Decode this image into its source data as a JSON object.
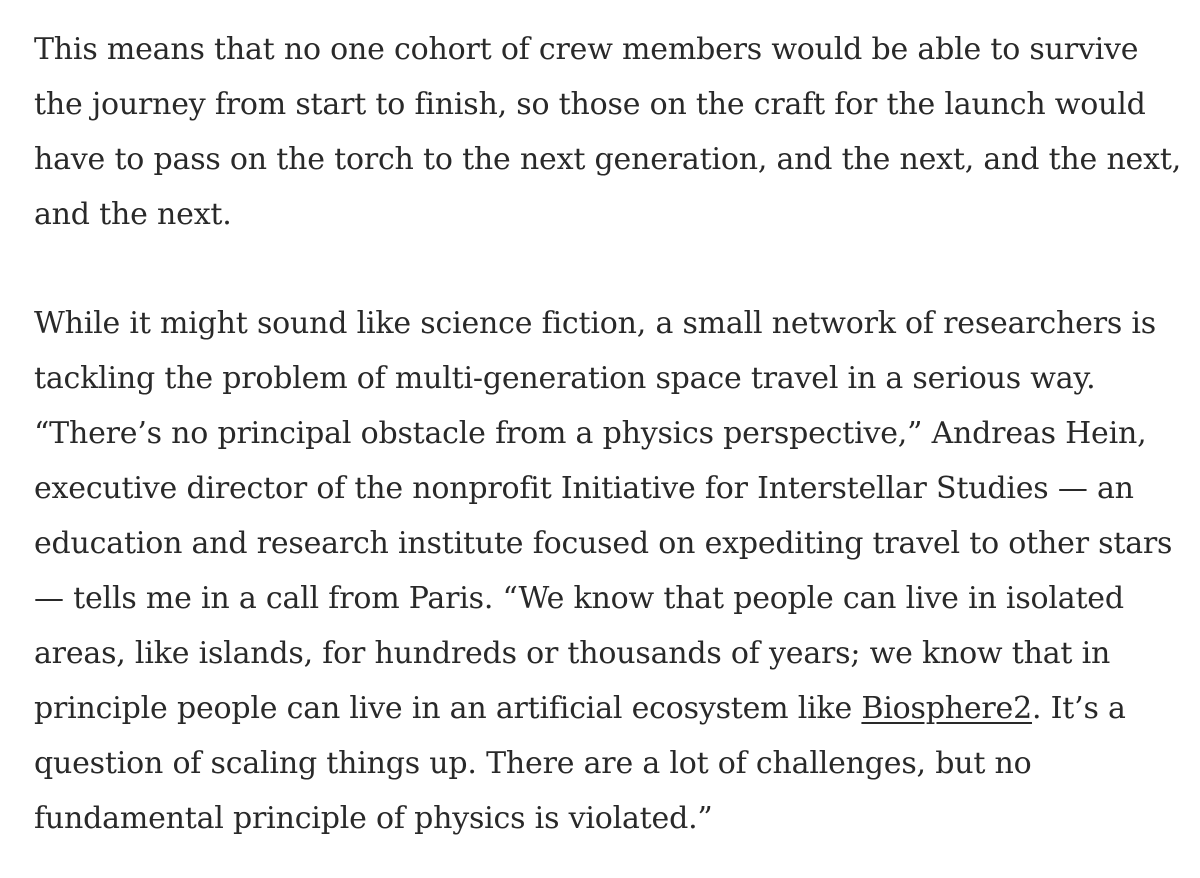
{
  "article": {
    "paragraph_1": {
      "lines": [
        "This means that no one cohort of crew members would be able to survive",
        "the journey from start to finish, so those on the craft for the launch would",
        "have to pass on the torch to the next generation, and the next, and the next,",
        "and the next."
      ]
    },
    "paragraph_2": {
      "lines": [
        "While it might sound like science fiction, a small network of researchers is",
        "tackling the problem of multi-generation space travel in a serious way.",
        "“There’s no principal obstacle from a physics perspective,” Andreas Hein,",
        "executive director of the nonprofit Initiative for Interstellar Studies — an",
        "education and research institute focused on expediting travel to other stars",
        "— tells me in a call from Paris. “We know that people can live in isolated",
        "areas, like islands, for hundreds or thousands of years; we know that in"
      ],
      "line_8_before_link": "principle people can live in an artificial ecosystem like ",
      "link_text": "Biosphere2",
      "line_8_after_link": ". It’s a",
      "lines_after": [
        "question of scaling things up. There are a lot of challenges, but no",
        "fundamental principle of physics is violated.”"
      ]
    }
  }
}
